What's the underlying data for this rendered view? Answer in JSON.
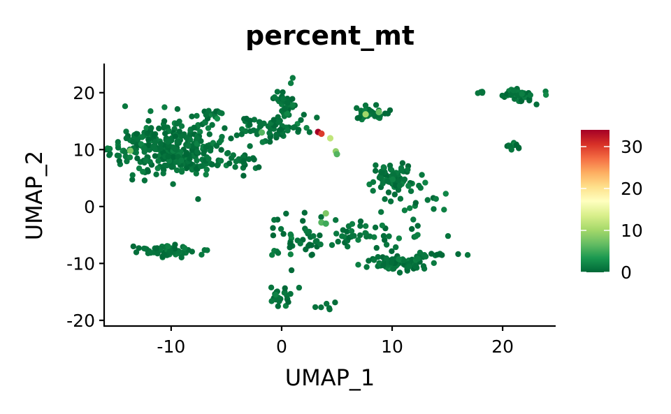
{
  "chart_data": {
    "type": "scatter",
    "title": "percent_mt",
    "xlabel": "UMAP_1",
    "ylabel": "UMAP_2",
    "xlim": [
      -16,
      24.8
    ],
    "ylim": [
      -21,
      25
    ],
    "x_ticks": [
      -10,
      0,
      10,
      20
    ],
    "y_ticks": [
      -20,
      -10,
      0,
      10,
      20
    ],
    "x_tick_labels": [
      "-10",
      "0",
      "10",
      "20"
    ],
    "y_tick_labels": [
      "-20",
      "-10",
      "0",
      "10",
      "20"
    ],
    "color_scale": {
      "name": "percent_mt",
      "min": 0,
      "max": 34,
      "ticks": [
        0,
        10,
        20,
        30
      ],
      "tick_labels": [
        "0",
        "10",
        "20",
        "30"
      ],
      "stops": [
        "#006837",
        "#1A9850",
        "#66BD63",
        "#A6D96A",
        "#D9EF8B",
        "#FFFFBF",
        "#FEE08B",
        "#FDAE61",
        "#F46D43",
        "#D73027",
        "#A50026"
      ]
    },
    "clusters": [
      {
        "cx": -10,
        "cy": 10,
        "sx": 2.6,
        "sy": 2.4,
        "n": 340,
        "value": 0.8
      },
      {
        "cx": -6.5,
        "cy": 16.6,
        "sx": 0.6,
        "sy": 0.5,
        "n": 14,
        "value": 0.8
      },
      {
        "cx": -3.7,
        "cy": 7.8,
        "sx": 0.6,
        "sy": 0.5,
        "n": 12,
        "value": 0.8
      },
      {
        "cx": -10.2,
        "cy": -7.8,
        "sx": 1.4,
        "sy": 0.6,
        "n": 60,
        "value": 0.8
      },
      {
        "cx": 0.3,
        "cy": 18.4,
        "sx": 0.6,
        "sy": 2.2,
        "n": 40,
        "value": 0.8
      },
      {
        "cx": -0.4,
        "cy": 13.6,
        "sx": 2.3,
        "sy": 1.3,
        "n": 55,
        "value": 0.8
      },
      {
        "cx": 8.2,
        "cy": 16.3,
        "sx": 0.9,
        "sy": 0.6,
        "n": 35,
        "value": 0.8
      },
      {
        "cx": 10,
        "cy": 5.2,
        "sx": 0.9,
        "sy": 1.2,
        "n": 70,
        "value": 0.8
      },
      {
        "cx": 12.2,
        "cy": 0.8,
        "sx": 1.5,
        "sy": 1.8,
        "n": 20,
        "value": 0.8
      },
      {
        "cx": 6.2,
        "cy": -5.5,
        "sx": 3.4,
        "sy": 1.2,
        "n": 60,
        "value": 0.8
      },
      {
        "cx": 10.4,
        "cy": -10,
        "sx": 1.3,
        "sy": 0.6,
        "n": 70,
        "value": 0.8
      },
      {
        "cx": 13.6,
        "cy": -8.6,
        "sx": 1.2,
        "sy": 0.3,
        "n": 15,
        "value": 0.8
      },
      {
        "cx": 1,
        "cy": -5.5,
        "sx": 1.5,
        "sy": 2.4,
        "n": 30,
        "value": 0.8
      },
      {
        "cx": 0,
        "cy": -15.8,
        "sx": 0.6,
        "sy": 1.0,
        "n": 25,
        "value": 0.8
      },
      {
        "cx": 3.6,
        "cy": -17.4,
        "sx": 0.6,
        "sy": 0.4,
        "n": 6,
        "value": 0.8
      },
      {
        "cx": 21.5,
        "cy": 19.6,
        "sx": 0.8,
        "sy": 0.5,
        "n": 45,
        "value": 0.8
      },
      {
        "cx": 21,
        "cy": 10.5,
        "sx": 0.3,
        "sy": 0.4,
        "n": 15,
        "value": 0.8
      },
      {
        "cx": 18.2,
        "cy": 20.1,
        "sx": 0.25,
        "sy": 0.15,
        "n": 5,
        "value": 0.8
      }
    ],
    "points": [
      {
        "x": 3.3,
        "y": 13.1,
        "value": 34
      },
      {
        "x": 3.6,
        "y": 12.8,
        "value": 30
      },
      {
        "x": 4.4,
        "y": 12.0,
        "value": 12
      },
      {
        "x": 4.9,
        "y": 9.7,
        "value": 9
      },
      {
        "x": 5.0,
        "y": 9.2,
        "value": 6
      },
      {
        "x": 7.6,
        "y": 16.2,
        "value": 10
      },
      {
        "x": 8.8,
        "y": 16.6,
        "value": 7
      },
      {
        "x": -1.8,
        "y": 13.0,
        "value": 6
      },
      {
        "x": -13.7,
        "y": 9.8,
        "value": 8
      },
      {
        "x": 4.0,
        "y": -1.2,
        "value": 8
      },
      {
        "x": 3.6,
        "y": -2.8,
        "value": 6
      },
      {
        "x": 4.0,
        "y": -3.0,
        "value": 5
      }
    ]
  }
}
